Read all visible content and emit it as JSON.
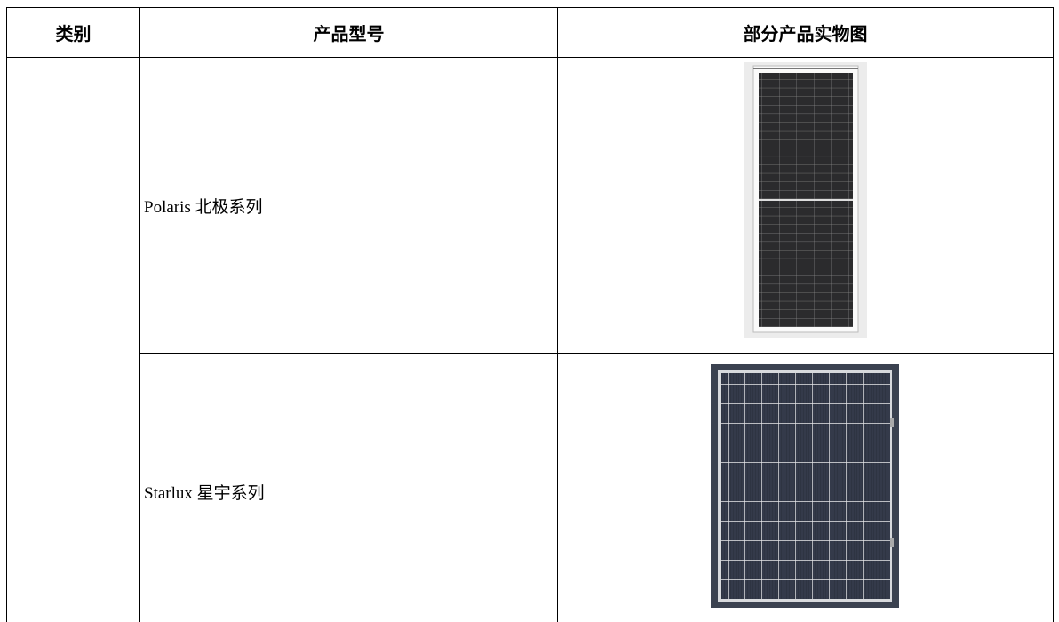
{
  "table": {
    "header": [
      "类别",
      "产品型号",
      "部分产品实物图"
    ],
    "rows": [
      {
        "model": "Polaris 北极系列"
      },
      {
        "model": "Starlux 星宇系列"
      }
    ]
  }
}
